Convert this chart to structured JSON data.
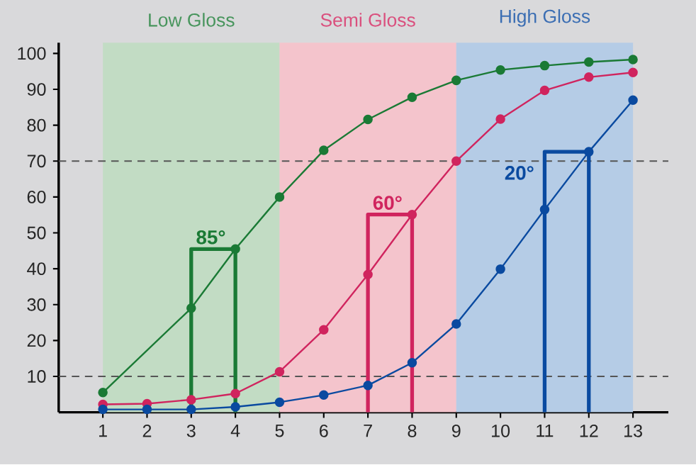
{
  "chart_data": {
    "type": "line",
    "xlim": [
      0,
      13.8
    ],
    "ylim": [
      0,
      103
    ],
    "xticks": [
      1,
      2,
      3,
      4,
      5,
      6,
      7,
      8,
      9,
      10,
      11,
      12,
      13
    ],
    "yticks": [
      10,
      20,
      30,
      40,
      50,
      60,
      70,
      80,
      90,
      100
    ],
    "marker": "circle",
    "line_style": "solid",
    "series": [
      {
        "color": "#1a7a35",
        "x": [
          1,
          3,
          4,
          5,
          6,
          7,
          8,
          9,
          10,
          11,
          12,
          13
        ],
        "values": [
          5.5,
          29,
          45.5,
          60,
          73,
          81.6,
          87.8,
          92.5,
          95.4,
          96.6,
          97.6,
          98.3
        ]
      },
      {
        "color": "#d0245e",
        "x": [
          1,
          2,
          3,
          4,
          5,
          6,
          7,
          8,
          9,
          10,
          11,
          12,
          13
        ],
        "values": [
          2.2,
          2.4,
          3.5,
          5.2,
          11.3,
          23,
          38.4,
          55.1,
          70,
          81.7,
          89.7,
          93.4,
          94.7
        ]
      },
      {
        "color": "#0a4aa0",
        "x": [
          1,
          2,
          3,
          4,
          5,
          6,
          7,
          8,
          9,
          10,
          11,
          12,
          13
        ],
        "values": [
          0.8,
          0.8,
          0.8,
          1.5,
          2.8,
          4.8,
          7.5,
          13.8,
          24.6,
          39.9,
          56.5,
          72.6,
          87
        ]
      },
      {
        "color": "#1a7a35",
        "marker": "none",
        "x": [
          3,
          3,
          4,
          4
        ],
        "values": [
          0,
          45.5,
          45.5,
          0
        ]
      },
      {
        "color": "#d0245e",
        "marker": "none",
        "x": [
          7,
          7,
          8,
          8
        ],
        "values": [
          0,
          55.1,
          55.1,
          0
        ]
      },
      {
        "color": "#0a4aa0",
        "marker": "none",
        "x": [
          11,
          11,
          12,
          12
        ],
        "values": [
          0,
          72.6,
          72.6,
          0
        ]
      }
    ],
    "bands": [
      {
        "axis": "x",
        "from": 1,
        "to": 5,
        "label": "Low Gloss",
        "color": "#c2dcc4"
      },
      {
        "axis": "x",
        "from": 5,
        "to": 9,
        "label": "Semi Gloss",
        "color": "#f4c4cc"
      },
      {
        "axis": "x",
        "from": 9,
        "to": 13,
        "label": "High Gloss",
        "color": "#b5cce6"
      }
    ],
    "ref_lines": [
      {
        "axis": "y",
        "value": 70,
        "color": "#555555",
        "line_style": "dashed"
      },
      {
        "axis": "y",
        "value": 10,
        "color": "#555555",
        "line_style": "dashed"
      }
    ],
    "annotations": [
      "85°",
      "60°",
      "20°"
    ]
  }
}
